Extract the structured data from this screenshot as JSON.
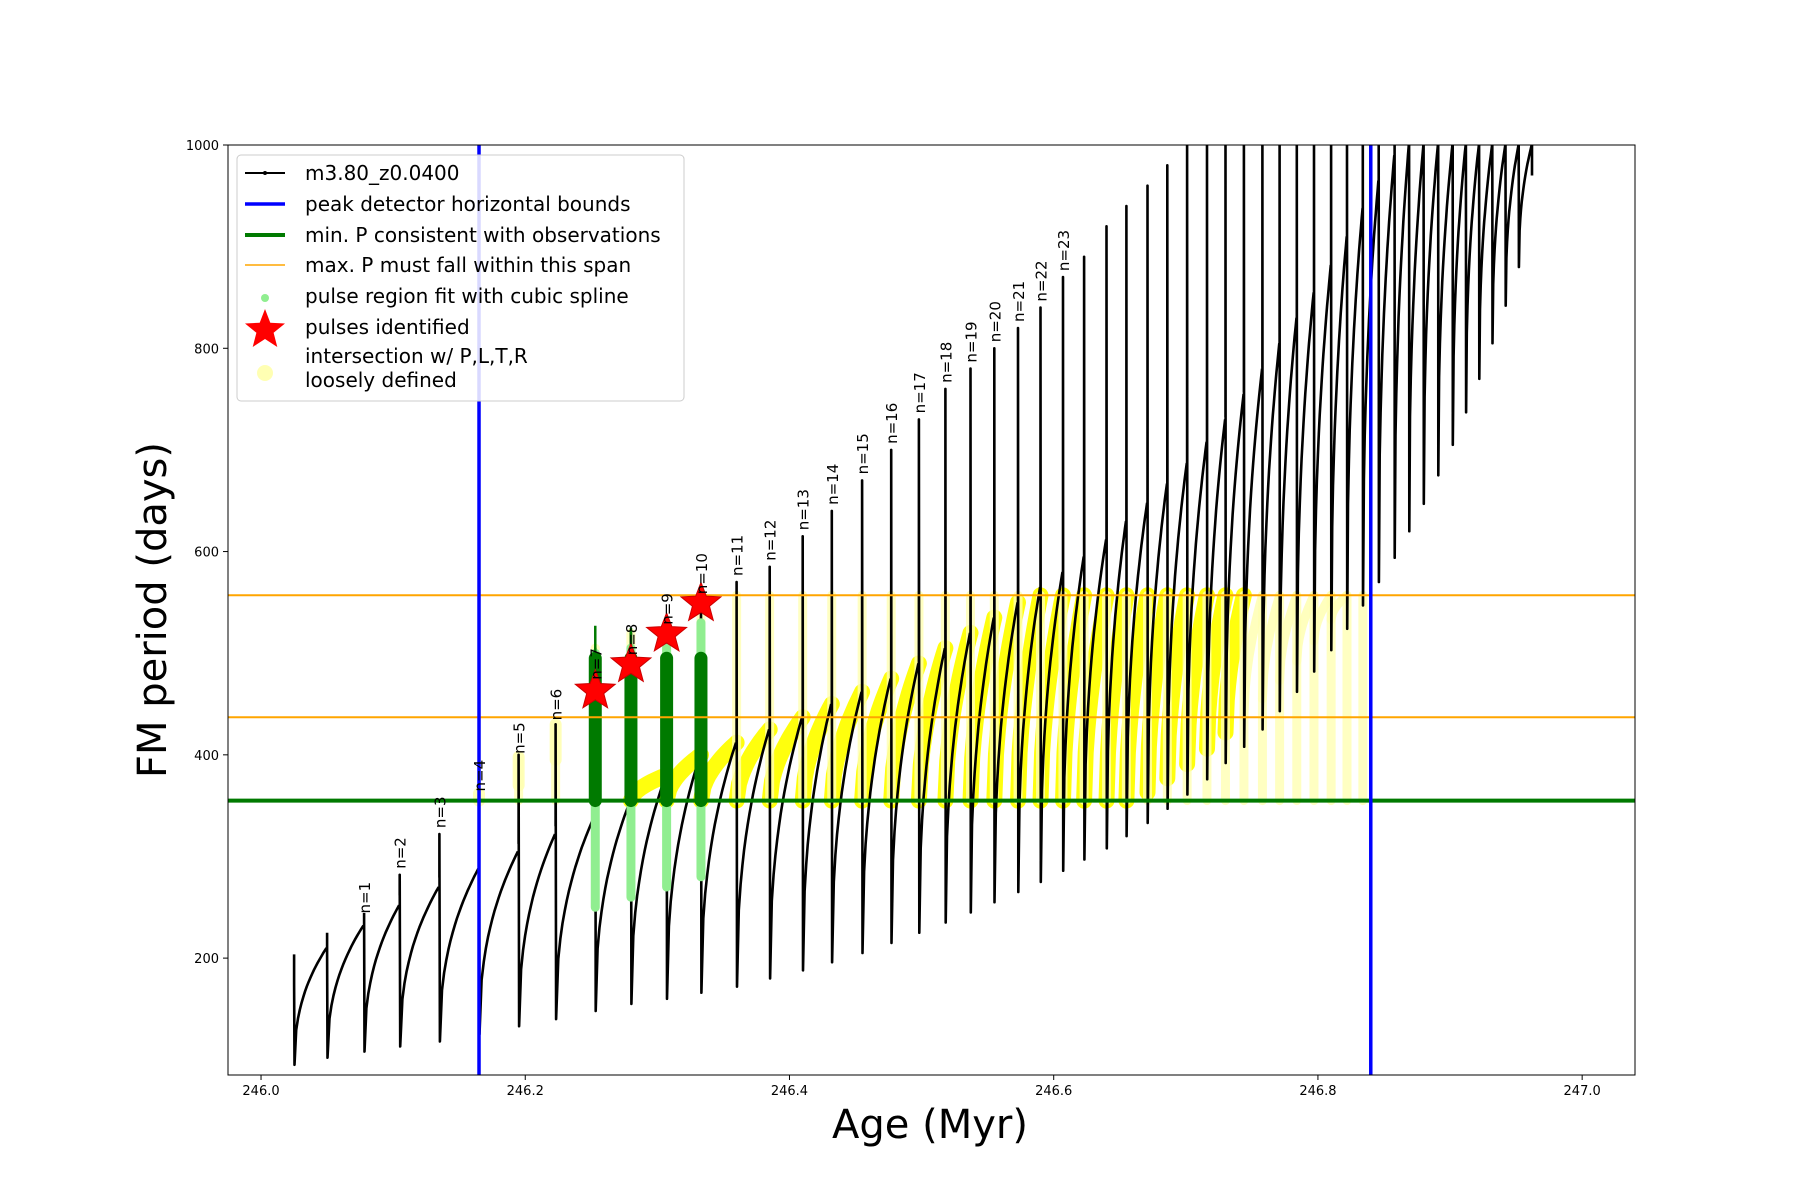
{
  "chart_data": {
    "type": "line",
    "title": "",
    "xlabel": "Age (Myr)",
    "ylabel": "FM period (days)",
    "xlim": [
      245.975,
      247.04
    ],
    "ylim": [
      85,
      1000
    ],
    "xticks": [
      246.0,
      246.2,
      246.4,
      246.6,
      246.8,
      247.0
    ],
    "xtick_labels": [
      "246.0",
      "246.2",
      "246.4",
      "246.6",
      "246.8",
      "247.0"
    ],
    "yticks": [
      200,
      400,
      600,
      800,
      1000
    ],
    "ytick_labels": [
      "200",
      "400",
      "600",
      "800",
      "1000"
    ],
    "grid": false,
    "legend_position": "top-left",
    "colors": {
      "track": "#000000",
      "bounds": "#0000ff",
      "min_p": "#007a00",
      "max_p": "#ffa500",
      "spline": "#90ee90",
      "star": "#ff0000",
      "intersect_strong": "#ffff00",
      "intersect_loose": "#ffffb3"
    },
    "legend": [
      {
        "key": "track",
        "label": "m3.80_z0.0400"
      },
      {
        "key": "bounds",
        "label": "peak detector horizontal bounds"
      },
      {
        "key": "min_p",
        "label": "min. P consistent with observations"
      },
      {
        "key": "max_p",
        "label": "max. P must fall within this span"
      },
      {
        "key": "spline",
        "label": "pulse region fit with cubic spline"
      },
      {
        "key": "star",
        "label": "pulses identified"
      },
      {
        "key": "intersect",
        "label_lines": [
          "intersection w/ P,L,T,R",
          "loosely defined"
        ]
      }
    ],
    "bounds_x": [
      246.165,
      246.84
    ],
    "min_p": 355,
    "max_p_span": [
      437,
      557
    ],
    "pulses": {
      "ages": [
        246.025,
        246.05,
        246.078,
        246.105,
        246.135,
        246.165,
        246.195,
        246.223,
        246.253,
        246.28,
        246.307,
        246.333,
        246.36,
        246.385,
        246.41,
        246.432,
        246.455,
        246.477,
        246.498,
        246.518,
        246.537,
        246.555,
        246.573,
        246.59,
        246.607,
        246.623,
        246.64,
        246.655,
        246.671,
        246.686,
        246.701,
        246.716,
        246.73,
        246.744,
        246.758,
        246.771,
        246.784,
        246.797,
        246.81,
        246.822,
        246.834,
        246.846,
        246.858,
        246.869,
        246.88,
        246.891,
        246.902,
        246.912,
        246.922,
        246.932,
        246.942,
        246.952,
        246.962
      ],
      "peak_periods": [
        175,
        205,
        238,
        282,
        322,
        358,
        400,
        430,
        505,
        520,
        515,
        540,
        570,
        585,
        615,
        640,
        670,
        700,
        730,
        760,
        780,
        800,
        820,
        840,
        870,
        890,
        920,
        940,
        960,
        980,
        1000,
        1000,
        1000,
        1000,
        1000,
        1000,
        1000,
        1000,
        1000,
        1000,
        1000,
        1000,
        1000,
        1000,
        1000,
        1000,
        1000,
        1000,
        1000,
        1000,
        1000,
        1000,
        1000
      ],
      "min_periods": [
        95,
        102,
        108,
        113,
        118,
        125,
        133,
        140,
        148,
        155,
        160,
        166,
        172,
        180,
        188,
        196,
        205,
        215,
        225,
        235,
        245,
        255,
        265,
        275,
        286,
        297,
        308,
        320,
        333,
        347,
        361,
        376,
        392,
        408,
        425,
        443,
        462,
        482,
        503,
        524,
        547,
        570,
        594,
        620,
        647,
        675,
        705,
        737,
        770,
        805,
        842,
        880,
        920
      ],
      "envelope_max": [
        210,
        232,
        252,
        270,
        288,
        305,
        322,
        340,
        355,
        380,
        400,
        412,
        425,
        437,
        450,
        462,
        475,
        490,
        505,
        520,
        535,
        550,
        565,
        580,
        595,
        612,
        630,
        648,
        667,
        687,
        708,
        730,
        755,
        780,
        805,
        830,
        855,
        882,
        910,
        938,
        965,
        990,
        1000,
        1000,
        1000,
        1000,
        1000,
        1000,
        1000,
        1000,
        1000,
        1000,
        1000
      ]
    },
    "n_labels": [
      {
        "n": 1,
        "text": "n=1",
        "x": 246.078,
        "y": 238
      },
      {
        "n": 2,
        "text": "n=2",
        "x": 246.105,
        "y": 282
      },
      {
        "n": 3,
        "text": "n=3",
        "x": 246.135,
        "y": 322
      },
      {
        "n": 4,
        "text": "n=4",
        "x": 246.165,
        "y": 358
      },
      {
        "n": 5,
        "text": "n=5",
        "x": 246.195,
        "y": 395
      },
      {
        "n": 6,
        "text": "n=6",
        "x": 246.223,
        "y": 428
      },
      {
        "n": 7,
        "text": "n=7",
        "x": 246.253,
        "y": 468
      },
      {
        "n": 8,
        "text": "n=8",
        "x": 246.28,
        "y": 492
      },
      {
        "n": 9,
        "text": "n=9",
        "x": 246.307,
        "y": 522
      },
      {
        "n": 10,
        "text": "n=10",
        "x": 246.333,
        "y": 552
      },
      {
        "n": 11,
        "text": "n=11",
        "x": 246.36,
        "y": 570
      },
      {
        "n": 12,
        "text": "n=12",
        "x": 246.385,
        "y": 585
      },
      {
        "n": 13,
        "text": "n=13",
        "x": 246.41,
        "y": 615
      },
      {
        "n": 14,
        "text": "n=14",
        "x": 246.432,
        "y": 640
      },
      {
        "n": 15,
        "text": "n=15",
        "x": 246.455,
        "y": 670
      },
      {
        "n": 16,
        "text": "n=16",
        "x": 246.477,
        "y": 700
      },
      {
        "n": 17,
        "text": "n=17",
        "x": 246.498,
        "y": 730
      },
      {
        "n": 18,
        "text": "n=18",
        "x": 246.518,
        "y": 760
      },
      {
        "n": 19,
        "text": "n=19",
        "x": 246.537,
        "y": 780
      },
      {
        "n": 20,
        "text": "n=20",
        "x": 246.555,
        "y": 800
      },
      {
        "n": 21,
        "text": "n=21",
        "x": 246.573,
        "y": 820
      },
      {
        "n": 22,
        "text": "n=22",
        "x": 246.59,
        "y": 840
      },
      {
        "n": 23,
        "text": "n=23",
        "x": 246.607,
        "y": 870
      }
    ],
    "identified_pulses": [
      {
        "n": 7,
        "x": 246.253,
        "y": 463
      },
      {
        "n": 8,
        "x": 246.28,
        "y": 489
      },
      {
        "n": 9,
        "x": 246.307,
        "y": 519
      },
      {
        "n": 10,
        "x": 246.333,
        "y": 549
      }
    ],
    "spline_regions": [
      {
        "x": 246.253,
        "y": [
          250,
          500
        ]
      },
      {
        "x": 246.28,
        "y": [
          260,
          505
        ]
      },
      {
        "x": 246.307,
        "y": [
          270,
          505
        ]
      },
      {
        "x": 246.333,
        "y": [
          280,
          530
        ]
      }
    ]
  }
}
